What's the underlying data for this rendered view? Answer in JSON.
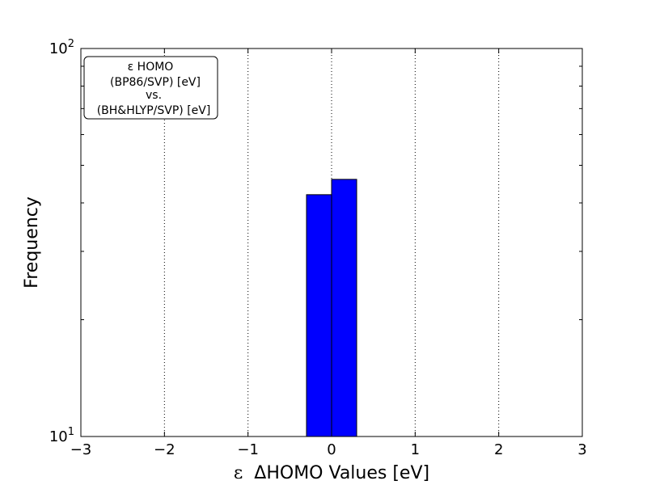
{
  "chart_data": {
    "type": "bar",
    "xlabel_epsilon": "ε",
    "xlabel": "ΔHOMO Values [eV]",
    "ylabel": "Frequency",
    "x_ticks": [
      -3,
      -2,
      -1,
      0,
      1,
      2,
      3
    ],
    "x_tick_labels": [
      "−3",
      "−2",
      "−1",
      "0",
      "1",
      "2",
      "3"
    ],
    "xlim": [
      -3,
      3
    ],
    "ylim": [
      10,
      100
    ],
    "y_scale": "log",
    "y_tick_labels": [
      {
        "value": 10,
        "base": "10",
        "exp": "1"
      },
      {
        "value": 100,
        "base": "10",
        "exp": "2"
      }
    ],
    "grid": "vertical-dotted",
    "bar_color": "#0000ff",
    "bars": [
      {
        "x0": -0.3,
        "x1": 0.0,
        "value": 42
      },
      {
        "x0": 0.0,
        "x1": 0.3,
        "value": 46
      }
    ],
    "legend": {
      "placement": "top-left",
      "lines": [
        "ε HOMO",
        "(BP86/SVP) [eV]",
        "vs.",
        "(BH&HLYP/SVP) [eV]"
      ]
    }
  }
}
